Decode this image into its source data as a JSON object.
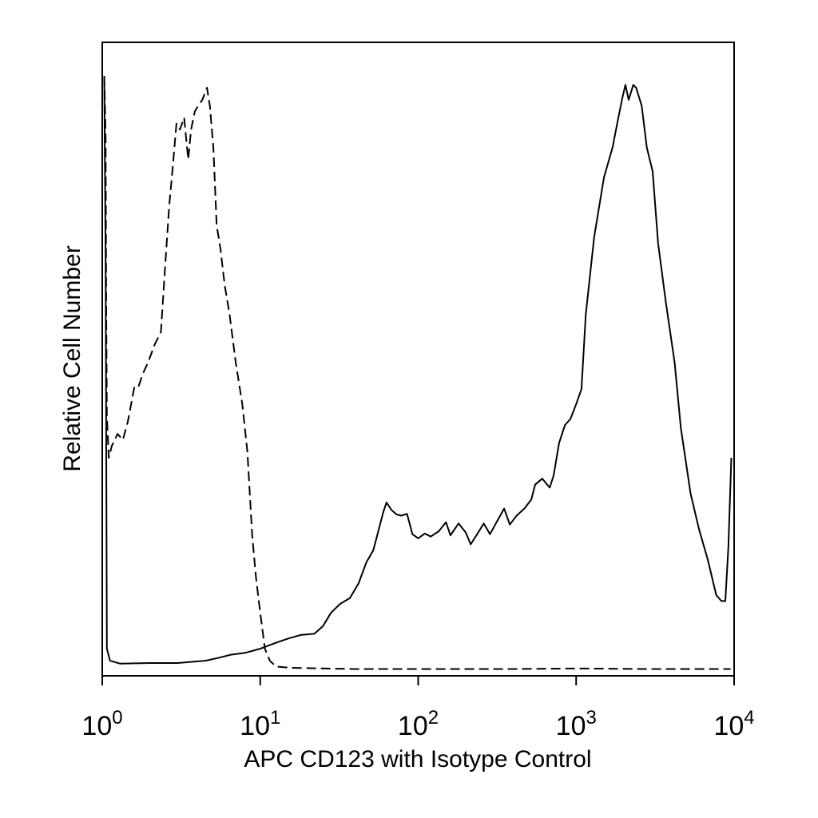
{
  "chart_data": {
    "type": "line",
    "title": "",
    "xlabel": "APC CD123 with Isotype Control",
    "ylabel": "Relative Cell Number",
    "x_scale": "log",
    "xlim": [
      1,
      10000
    ],
    "ylim": [
      0,
      100
    ],
    "grid": false,
    "legend": "none",
    "x_ticks": [
      {
        "value": 1,
        "base": "10",
        "exp": "0"
      },
      {
        "value": 10,
        "base": "10",
        "exp": "1"
      },
      {
        "value": 100,
        "base": "10",
        "exp": "2"
      },
      {
        "value": 1000,
        "base": "10",
        "exp": "3"
      },
      {
        "value": 10000,
        "base": "10",
        "exp": "4"
      }
    ],
    "series": [
      {
        "style": "dashed",
        "color": "#000000",
        "points": [
          [
            1.03,
            100
          ],
          [
            1.05,
            90
          ],
          [
            1.06,
            60
          ],
          [
            1.07,
            43
          ],
          [
            1.1,
            36
          ],
          [
            1.15,
            38
          ],
          [
            1.25,
            40
          ],
          [
            1.35,
            39
          ],
          [
            1.45,
            42
          ],
          [
            1.6,
            48
          ],
          [
            1.7,
            48
          ],
          [
            1.8,
            50
          ],
          [
            1.95,
            52
          ],
          [
            2.15,
            55
          ],
          [
            2.35,
            57
          ],
          [
            2.5,
            68
          ],
          [
            2.65,
            78
          ],
          [
            2.8,
            85
          ],
          [
            2.95,
            92
          ],
          [
            3.1,
            91
          ],
          [
            3.3,
            93
          ],
          [
            3.5,
            86
          ],
          [
            3.65,
            91
          ],
          [
            3.85,
            94
          ],
          [
            4.05,
            95
          ],
          [
            4.3,
            96
          ],
          [
            4.6,
            98
          ],
          [
            4.8,
            95
          ],
          [
            5.05,
            88
          ],
          [
            5.3,
            75
          ],
          [
            5.6,
            71
          ],
          [
            5.95,
            65
          ],
          [
            6.4,
            60
          ],
          [
            7.0,
            52
          ],
          [
            7.7,
            45
          ],
          [
            8.3,
            37
          ],
          [
            8.9,
            23
          ],
          [
            9.4,
            16
          ],
          [
            10.0,
            10
          ],
          [
            10.7,
            4
          ],
          [
            11.5,
            2
          ],
          [
            12.6,
            1
          ],
          [
            15.8,
            0.8
          ],
          [
            25,
            0.7
          ],
          [
            40,
            0.6
          ],
          [
            100,
            0.6
          ],
          [
            400,
            0.6
          ],
          [
            1000,
            0.7
          ],
          [
            3000,
            0.6
          ],
          [
            9500,
            0.6
          ]
        ]
      },
      {
        "style": "solid",
        "color": "#000000",
        "points": [
          [
            1.03,
            100
          ],
          [
            1.05,
            70
          ],
          [
            1.07,
            4
          ],
          [
            1.12,
            2
          ],
          [
            1.3,
            1.5
          ],
          [
            2.0,
            1.6
          ],
          [
            3.0,
            1.6
          ],
          [
            4.5,
            2
          ],
          [
            5.5,
            2.5
          ],
          [
            6.5,
            3
          ],
          [
            8.0,
            3.3
          ],
          [
            10.0,
            4
          ],
          [
            12.6,
            5
          ],
          [
            15,
            5.7
          ],
          [
            18,
            6.3
          ],
          [
            22,
            6.5
          ],
          [
            25,
            7.8
          ],
          [
            28,
            10
          ],
          [
            32,
            11.5
          ],
          [
            37,
            12.5
          ],
          [
            42,
            15
          ],
          [
            47,
            18.5
          ],
          [
            52,
            20.5
          ],
          [
            55,
            23
          ],
          [
            60,
            26.8
          ],
          [
            63,
            28.5
          ],
          [
            68,
            27.2
          ],
          [
            73,
            26.5
          ],
          [
            78,
            26.3
          ],
          [
            85,
            26.6
          ],
          [
            92,
            23.2
          ],
          [
            100,
            22.5
          ],
          [
            110,
            23.3
          ],
          [
            120,
            22.8
          ],
          [
            135,
            23.7
          ],
          [
            150,
            25.2
          ],
          [
            160,
            23
          ],
          [
            180,
            25
          ],
          [
            200,
            23.5
          ],
          [
            215,
            21.5
          ],
          [
            240,
            23.5
          ],
          [
            260,
            25
          ],
          [
            285,
            23.2
          ],
          [
            315,
            25.3
          ],
          [
            350,
            27.5
          ],
          [
            380,
            24.8
          ],
          [
            420,
            26.3
          ],
          [
            470,
            27.5
          ],
          [
            520,
            29
          ],
          [
            550,
            31.5
          ],
          [
            610,
            32.5
          ],
          [
            680,
            31
          ],
          [
            720,
            33
          ],
          [
            780,
            38.5
          ],
          [
            850,
            41.5
          ],
          [
            920,
            42.5
          ],
          [
            1000,
            45
          ],
          [
            1080,
            47.5
          ],
          [
            1150,
            60
          ],
          [
            1300,
            73
          ],
          [
            1500,
            83
          ],
          [
            1700,
            88
          ],
          [
            1850,
            93
          ],
          [
            1950,
            96
          ],
          [
            2050,
            98.5
          ],
          [
            2150,
            96
          ],
          [
            2300,
            98.5
          ],
          [
            2400,
            98
          ],
          [
            2600,
            95
          ],
          [
            2800,
            88
          ],
          [
            3050,
            84
          ],
          [
            3300,
            72
          ],
          [
            3700,
            62
          ],
          [
            4200,
            52
          ],
          [
            4600,
            41
          ],
          [
            5300,
            30
          ],
          [
            6000,
            24
          ],
          [
            6800,
            19
          ],
          [
            7700,
            13
          ],
          [
            8300,
            12
          ],
          [
            8800,
            12
          ],
          [
            9200,
            21
          ],
          [
            9600,
            36
          ]
        ]
      }
    ]
  }
}
